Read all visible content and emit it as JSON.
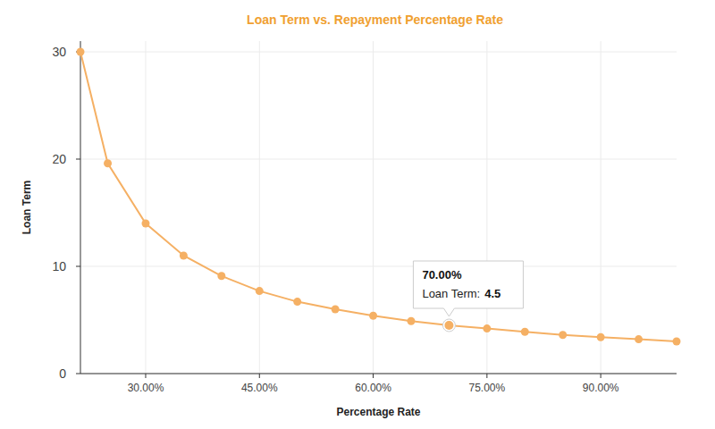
{
  "chart_data": {
    "type": "line",
    "title": "Loan Term vs. Repayment Percentage Rate",
    "x_label": "Percentage Rate",
    "y_label": "Loan Term",
    "x": [
      21.4,
      25,
      30,
      35,
      40,
      45,
      50,
      55,
      60,
      65,
      70,
      75,
      80,
      85,
      90,
      95,
      100
    ],
    "values": [
      30,
      19.6,
      14,
      11,
      9.1,
      7.7,
      6.7,
      6.0,
      5.4,
      4.9,
      4.5,
      4.2,
      3.9,
      3.6,
      3.4,
      3.2,
      3.0
    ],
    "color": "#f5b064",
    "marker": "circle",
    "xlim": [
      21.4,
      100
    ],
    "ylim": [
      0,
      31
    ],
    "xticks": [
      {
        "value": 30,
        "label": "30.00%"
      },
      {
        "value": 45,
        "label": "45.00%"
      },
      {
        "value": 60,
        "label": "60.00%"
      },
      {
        "value": 75,
        "label": "75.00%"
      },
      {
        "value": 90,
        "label": "90.00%"
      }
    ],
    "yticks": [
      0,
      10,
      20,
      30
    ],
    "grid": true,
    "tooltip": {
      "index": 10,
      "header": "70.00%",
      "label": "Loan Term:"
    }
  }
}
